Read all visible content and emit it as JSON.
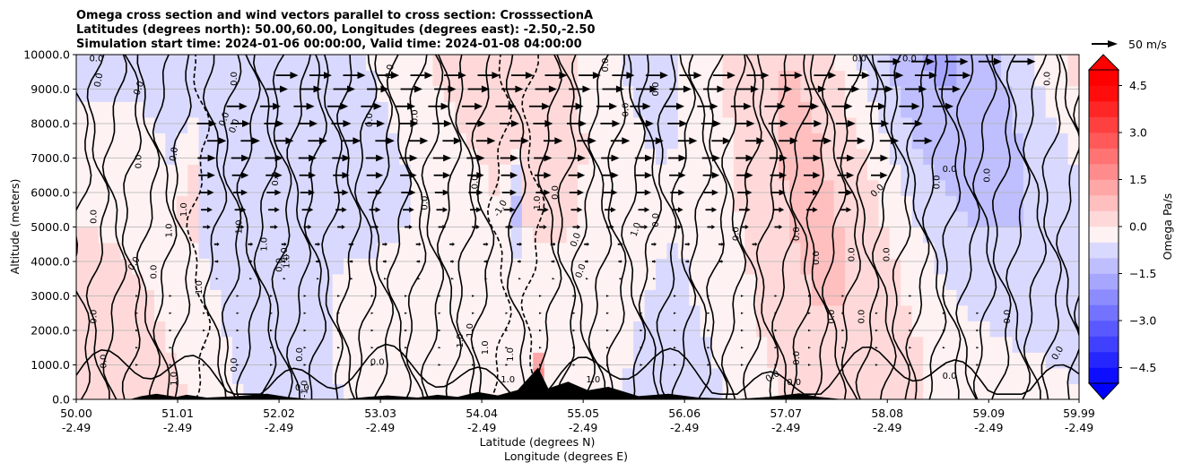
{
  "chart_data": {
    "type": "heatmap",
    "title_lines": [
      "Omega cross section and wind vectors parallel to cross section: CrosssectionA",
      "Latitudes (degrees north): 50.00,60.00, Longitudes (degrees east): -2.50,-2.50",
      "Simulation start time: 2024-01-06 00:00:00, Valid time: 2024-01-08 04:00:00"
    ],
    "xlabel": "Latitude (degrees N)",
    "xlabel2": "Longitude (degrees E)",
    "ylabel": "Altitude (meters)",
    "xlim": [
      50.0,
      59.99
    ],
    "ylim": [
      0,
      10000
    ],
    "x_ticks": [
      {
        "lat": "50.00",
        "lon": "-2.49",
        "value": 50.0
      },
      {
        "lat": "51.01",
        "lon": "-2.49",
        "value": 51.01
      },
      {
        "lat": "52.02",
        "lon": "-2.49",
        "value": 52.02
      },
      {
        "lat": "53.03",
        "lon": "-2.49",
        "value": 53.03
      },
      {
        "lat": "54.04",
        "lon": "-2.49",
        "value": 54.04
      },
      {
        "lat": "55.05",
        "lon": "-2.49",
        "value": 55.05
      },
      {
        "lat": "56.06",
        "lon": "-2.49",
        "value": 56.06
      },
      {
        "lat": "57.07",
        "lon": "-2.49",
        "value": 57.07
      },
      {
        "lat": "58.08",
        "lon": "-2.49",
        "value": 58.08
      },
      {
        "lat": "59.09",
        "lon": "-2.49",
        "value": 59.09
      },
      {
        "lat": "59.99",
        "lon": "-2.49",
        "value": 59.99
      }
    ],
    "y_ticks": [
      {
        "label": "0.0",
        "value": 0
      },
      {
        "label": "1000.0",
        "value": 1000
      },
      {
        "label": "2000.0",
        "value": 2000
      },
      {
        "label": "3000.0",
        "value": 3000
      },
      {
        "label": "4000.0",
        "value": 4000
      },
      {
        "label": "5000.0",
        "value": 5000
      },
      {
        "label": "6000.0",
        "value": 6000
      },
      {
        "label": "7000.0",
        "value": 7000
      },
      {
        "label": "8000.0",
        "value": 8000
      },
      {
        "label": "9000.0",
        "value": 9000
      },
      {
        "label": "10000.0",
        "value": 10000
      }
    ],
    "grid": true,
    "colorbar": {
      "label": "Omega Pa/s",
      "range": [
        -5.0,
        5.0
      ],
      "extend": "both",
      "ticks": [
        {
          "label": "4.5",
          "value": 4.5
        },
        {
          "label": "3.0",
          "value": 3.0
        },
        {
          "label": "1.5",
          "value": 1.5
        },
        {
          "label": "0.0",
          "value": 0.0
        },
        {
          "label": "−1.5",
          "value": -1.5
        },
        {
          "label": "−3.0",
          "value": -3.0
        },
        {
          "label": "−4.5",
          "value": -4.5
        }
      ],
      "neg_color": "#0000ff",
      "pos_color": "#ff0000",
      "mid_color": "#ffffff"
    },
    "contour_levels": [
      -1.0,
      0.0,
      1.0
    ],
    "quiver_key": {
      "label": "50 m/s",
      "speed": 50
    },
    "wind_rows": [
      {
        "altitude": 9800,
        "start": 58.1,
        "end": 59.6,
        "speed": 45
      },
      {
        "altitude": 9400,
        "start": 52.1,
        "end": 58.9,
        "speed": 43
      },
      {
        "altitude": 9000,
        "start": 52.0,
        "end": 58.8,
        "speed": 42
      },
      {
        "altitude": 8500,
        "start": 51.6,
        "end": 58.7,
        "speed": 40
      },
      {
        "altitude": 8000,
        "start": 51.3,
        "end": 58.6,
        "speed": 38
      },
      {
        "altitude": 7500,
        "start": 51.4,
        "end": 58.5,
        "speed": 37
      },
      {
        "altitude": 7000,
        "start": 51.3,
        "end": 58.3,
        "speed": 35
      },
      {
        "altitude": 6500,
        "start": 51.3,
        "end": 58.0,
        "speed": 32
      },
      {
        "altitude": 6000,
        "start": 51.3,
        "end": 57.9,
        "speed": 28
      },
      {
        "altitude": 5500,
        "start": 51.3,
        "end": 57.8,
        "speed": 22
      },
      {
        "altitude": 5000,
        "start": 51.3,
        "end": 57.2,
        "speed": 15
      },
      {
        "altitude": 4500,
        "start": 51.4,
        "end": 57.0,
        "speed": 10
      },
      {
        "altitude": 4000,
        "start": 51.4,
        "end": 56.5,
        "speed": 7
      },
      {
        "altitude": 3500,
        "start": 51.4,
        "end": 56.0,
        "speed": 4
      },
      {
        "altitude": 3000,
        "start": 50.6,
        "end": 58.9,
        "speed": 2
      },
      {
        "altitude": 2500,
        "start": 50.6,
        "end": 59.2,
        "speed": 1
      },
      {
        "altitude": 2000,
        "start": 50.6,
        "end": 59.3,
        "speed": 1
      },
      {
        "altitude": 1500,
        "start": 50.6,
        "end": 59.3,
        "speed": 1
      },
      {
        "altitude": 1000,
        "start": 50.6,
        "end": 59.3,
        "speed": 0.5
      }
    ],
    "terrain": [
      {
        "lat": 50.0,
        "height": 0
      },
      {
        "lat": 50.55,
        "height": 0
      },
      {
        "lat": 50.65,
        "height": 80
      },
      {
        "lat": 50.8,
        "height": 150
      },
      {
        "lat": 51.0,
        "height": 60
      },
      {
        "lat": 51.1,
        "height": 120
      },
      {
        "lat": 51.3,
        "height": 40
      },
      {
        "lat": 51.6,
        "height": 80
      },
      {
        "lat": 51.9,
        "height": 150
      },
      {
        "lat": 52.1,
        "height": 60
      },
      {
        "lat": 52.3,
        "height": 0
      },
      {
        "lat": 52.7,
        "height": 0
      },
      {
        "lat": 52.9,
        "height": 60
      },
      {
        "lat": 53.1,
        "height": 100
      },
      {
        "lat": 53.4,
        "height": 40
      },
      {
        "lat": 53.6,
        "height": 120
      },
      {
        "lat": 53.8,
        "height": 60
      },
      {
        "lat": 54.0,
        "height": 200
      },
      {
        "lat": 54.2,
        "height": 100
      },
      {
        "lat": 54.4,
        "height": 260
      },
      {
        "lat": 54.6,
        "height": 900
      },
      {
        "lat": 54.7,
        "height": 300
      },
      {
        "lat": 54.9,
        "height": 500
      },
      {
        "lat": 55.1,
        "height": 250
      },
      {
        "lat": 55.3,
        "height": 350
      },
      {
        "lat": 55.6,
        "height": 80
      },
      {
        "lat": 55.9,
        "height": 150
      },
      {
        "lat": 56.2,
        "height": 40
      },
      {
        "lat": 56.6,
        "height": 0
      },
      {
        "lat": 56.9,
        "height": 60
      },
      {
        "lat": 57.2,
        "height": 160
      },
      {
        "lat": 57.4,
        "height": 60
      },
      {
        "lat": 57.6,
        "height": 0
      },
      {
        "lat": 59.99,
        "height": 0
      }
    ],
    "contour_labels": [
      {
        "text": "0.0",
        "lat": 50.2,
        "alt": 9800,
        "rot": 0
      },
      {
        "text": "0.0",
        "lat": 50.25,
        "alt": 9250,
        "rot": -80
      },
      {
        "text": "0.0",
        "lat": 50.65,
        "alt": 9000,
        "rot": -70
      },
      {
        "text": "0.0",
        "lat": 51.5,
        "alt": 8100,
        "rot": -70
      },
      {
        "text": "0.0",
        "lat": 51.6,
        "alt": 7900,
        "rot": -70
      },
      {
        "text": "0.0",
        "lat": 51.6,
        "alt": 9300,
        "rot": -90
      },
      {
        "text": "0.0",
        "lat": 51.0,
        "alt": 7100,
        "rot": -80
      },
      {
        "text": "0.0",
        "lat": 50.65,
        "alt": 6900,
        "rot": -90
      },
      {
        "text": "0.0",
        "lat": 52.01,
        "alt": 6400,
        "rot": -90
      },
      {
        "text": "0.0",
        "lat": 52.95,
        "alt": 8100,
        "rot": -90
      },
      {
        "text": "0.0",
        "lat": 53.15,
        "alt": 9500,
        "rot": -80
      },
      {
        "text": "0.0",
        "lat": 53.4,
        "alt": 8200,
        "rot": -90
      },
      {
        "text": "0.0",
        "lat": 54.0,
        "alt": 6300,
        "rot": -90
      },
      {
        "text": "0.0",
        "lat": 53.5,
        "alt": 5700,
        "rot": -90
      },
      {
        "text": "0.0",
        "lat": 55.3,
        "alt": 9700,
        "rot": -90
      },
      {
        "text": "0.0",
        "lat": 55.5,
        "alt": 8400,
        "rot": -90
      },
      {
        "text": "0.0",
        "lat": 55.8,
        "alt": 9000,
        "rot": -90
      },
      {
        "text": "0.0",
        "lat": 54.8,
        "alt": 6000,
        "rot": -90
      },
      {
        "text": "0.0",
        "lat": 55.8,
        "alt": 5200,
        "rot": -90
      },
      {
        "text": "0.0",
        "lat": 55.0,
        "alt": 4600,
        "rot": -70
      },
      {
        "text": "0.0",
        "lat": 55.05,
        "alt": 3700,
        "rot": -70
      },
      {
        "text": "0.0",
        "lat": 56.6,
        "alt": 4800,
        "rot": -90
      },
      {
        "text": "0.0",
        "lat": 57.2,
        "alt": 4800,
        "rot": -90
      },
      {
        "text": "0.0",
        "lat": 57.4,
        "alt": 4100,
        "rot": -90
      },
      {
        "text": "0.0",
        "lat": 57.75,
        "alt": 4200,
        "rot": -90
      },
      {
        "text": "0.0",
        "lat": 58.7,
        "alt": 6600,
        "rot": 0
      },
      {
        "text": "0.0",
        "lat": 58.6,
        "alt": 6300,
        "rot": -90
      },
      {
        "text": "0.0",
        "lat": 59.1,
        "alt": 6500,
        "rot": -90
      },
      {
        "text": "0.0",
        "lat": 58.0,
        "alt": 6000,
        "rot": -45
      },
      {
        "text": "0.0",
        "lat": 58.1,
        "alt": 4200,
        "rot": -90
      },
      {
        "text": "0.0",
        "lat": 57.55,
        "alt": 2400,
        "rot": -90
      },
      {
        "text": "0.0",
        "lat": 57.85,
        "alt": 2400,
        "rot": -90
      },
      {
        "text": "0.0",
        "lat": 59.3,
        "alt": 2400,
        "rot": -90
      },
      {
        "text": "0.0",
        "lat": 59.7,
        "alt": 9300,
        "rot": -90
      },
      {
        "text": "0.0",
        "lat": 50.2,
        "alt": 5300,
        "rot": -90
      },
      {
        "text": "0.0",
        "lat": 50.6,
        "alt": 3900,
        "rot": -60
      },
      {
        "text": "0.0",
        "lat": 50.8,
        "alt": 3700,
        "rot": -90
      },
      {
        "text": "0.0",
        "lat": 50.2,
        "alt": 2400,
        "rot": -90
      },
      {
        "text": "0.0",
        "lat": 50.3,
        "alt": 1100,
        "rot": -90
      },
      {
        "text": "0.0",
        "lat": 52.05,
        "alt": 3900,
        "rot": -90
      },
      {
        "text": "0.0",
        "lat": 52.25,
        "alt": 1300,
        "rot": -90
      },
      {
        "text": "0.0",
        "lat": 51.6,
        "alt": 1000,
        "rot": -90
      },
      {
        "text": "0.0",
        "lat": 53.0,
        "alt": 1000,
        "rot": 0
      },
      {
        "text": "0.0",
        "lat": 52.25,
        "alt": 260,
        "rot": 0
      },
      {
        "text": "0.0",
        "lat": 56.95,
        "alt": 600,
        "rot": -30
      },
      {
        "text": "0.0",
        "lat": 57.15,
        "alt": 420,
        "rot": 0
      },
      {
        "text": "0.0",
        "lat": 58.7,
        "alt": 600,
        "rot": 0
      },
      {
        "text": "0.0",
        "lat": 57.2,
        "alt": 1200,
        "rot": -90
      },
      {
        "text": "0.0",
        "lat": 59.8,
        "alt": 1300,
        "rot": -60
      },
      {
        "text": "0.0",
        "lat": 57.8,
        "alt": 9800,
        "rot": 0
      },
      {
        "text": "0.0",
        "lat": 58.3,
        "alt": 9800,
        "rot": 0
      },
      {
        "text": "1.0",
        "lat": 51.1,
        "alt": 5500,
        "rot": -90
      },
      {
        "text": "1.0",
        "lat": 50.95,
        "alt": 4900,
        "rot": -90
      },
      {
        "text": "1.0",
        "lat": 51.65,
        "alt": 5000,
        "rot": -90
      },
      {
        "text": "1.0",
        "lat": 51.9,
        "alt": 4500,
        "rot": -90
      },
      {
        "text": "1.0",
        "lat": 52.1,
        "alt": 4200,
        "rot": -90
      },
      {
        "text": "1.0",
        "lat": 52.12,
        "alt": 4000,
        "rot": -90
      },
      {
        "text": "1.0",
        "lat": 54.35,
        "alt": 1300,
        "rot": -90
      },
      {
        "text": "1.0",
        "lat": 54.1,
        "alt": 1500,
        "rot": -90
      },
      {
        "text": "1.0",
        "lat": 53.85,
        "alt": 1700,
        "rot": -90
      },
      {
        "text": "1.0",
        "lat": 54.3,
        "alt": 500,
        "rot": 0
      },
      {
        "text": "1.0",
        "lat": 55.15,
        "alt": 500,
        "rot": 0
      },
      {
        "text": "1.0",
        "lat": 51.0,
        "alt": 600,
        "rot": -90
      },
      {
        "text": "1.0",
        "lat": 53.95,
        "alt": 2000,
        "rot": -90
      },
      {
        "text": "-1.0",
        "lat": 51.25,
        "alt": 3200,
        "rot": -90
      },
      {
        "text": "-1.0",
        "lat": 54.25,
        "alt": 5500,
        "rot": -60
      },
      {
        "text": "-1.0",
        "lat": 52.3,
        "alt": 300,
        "rot": -90
      },
      {
        "text": "1.0",
        "lat": 55.6,
        "alt": 4900,
        "rot": -70
      },
      {
        "text": "1.0",
        "lat": 54.62,
        "alt": 5700,
        "rot": -90
      }
    ]
  }
}
